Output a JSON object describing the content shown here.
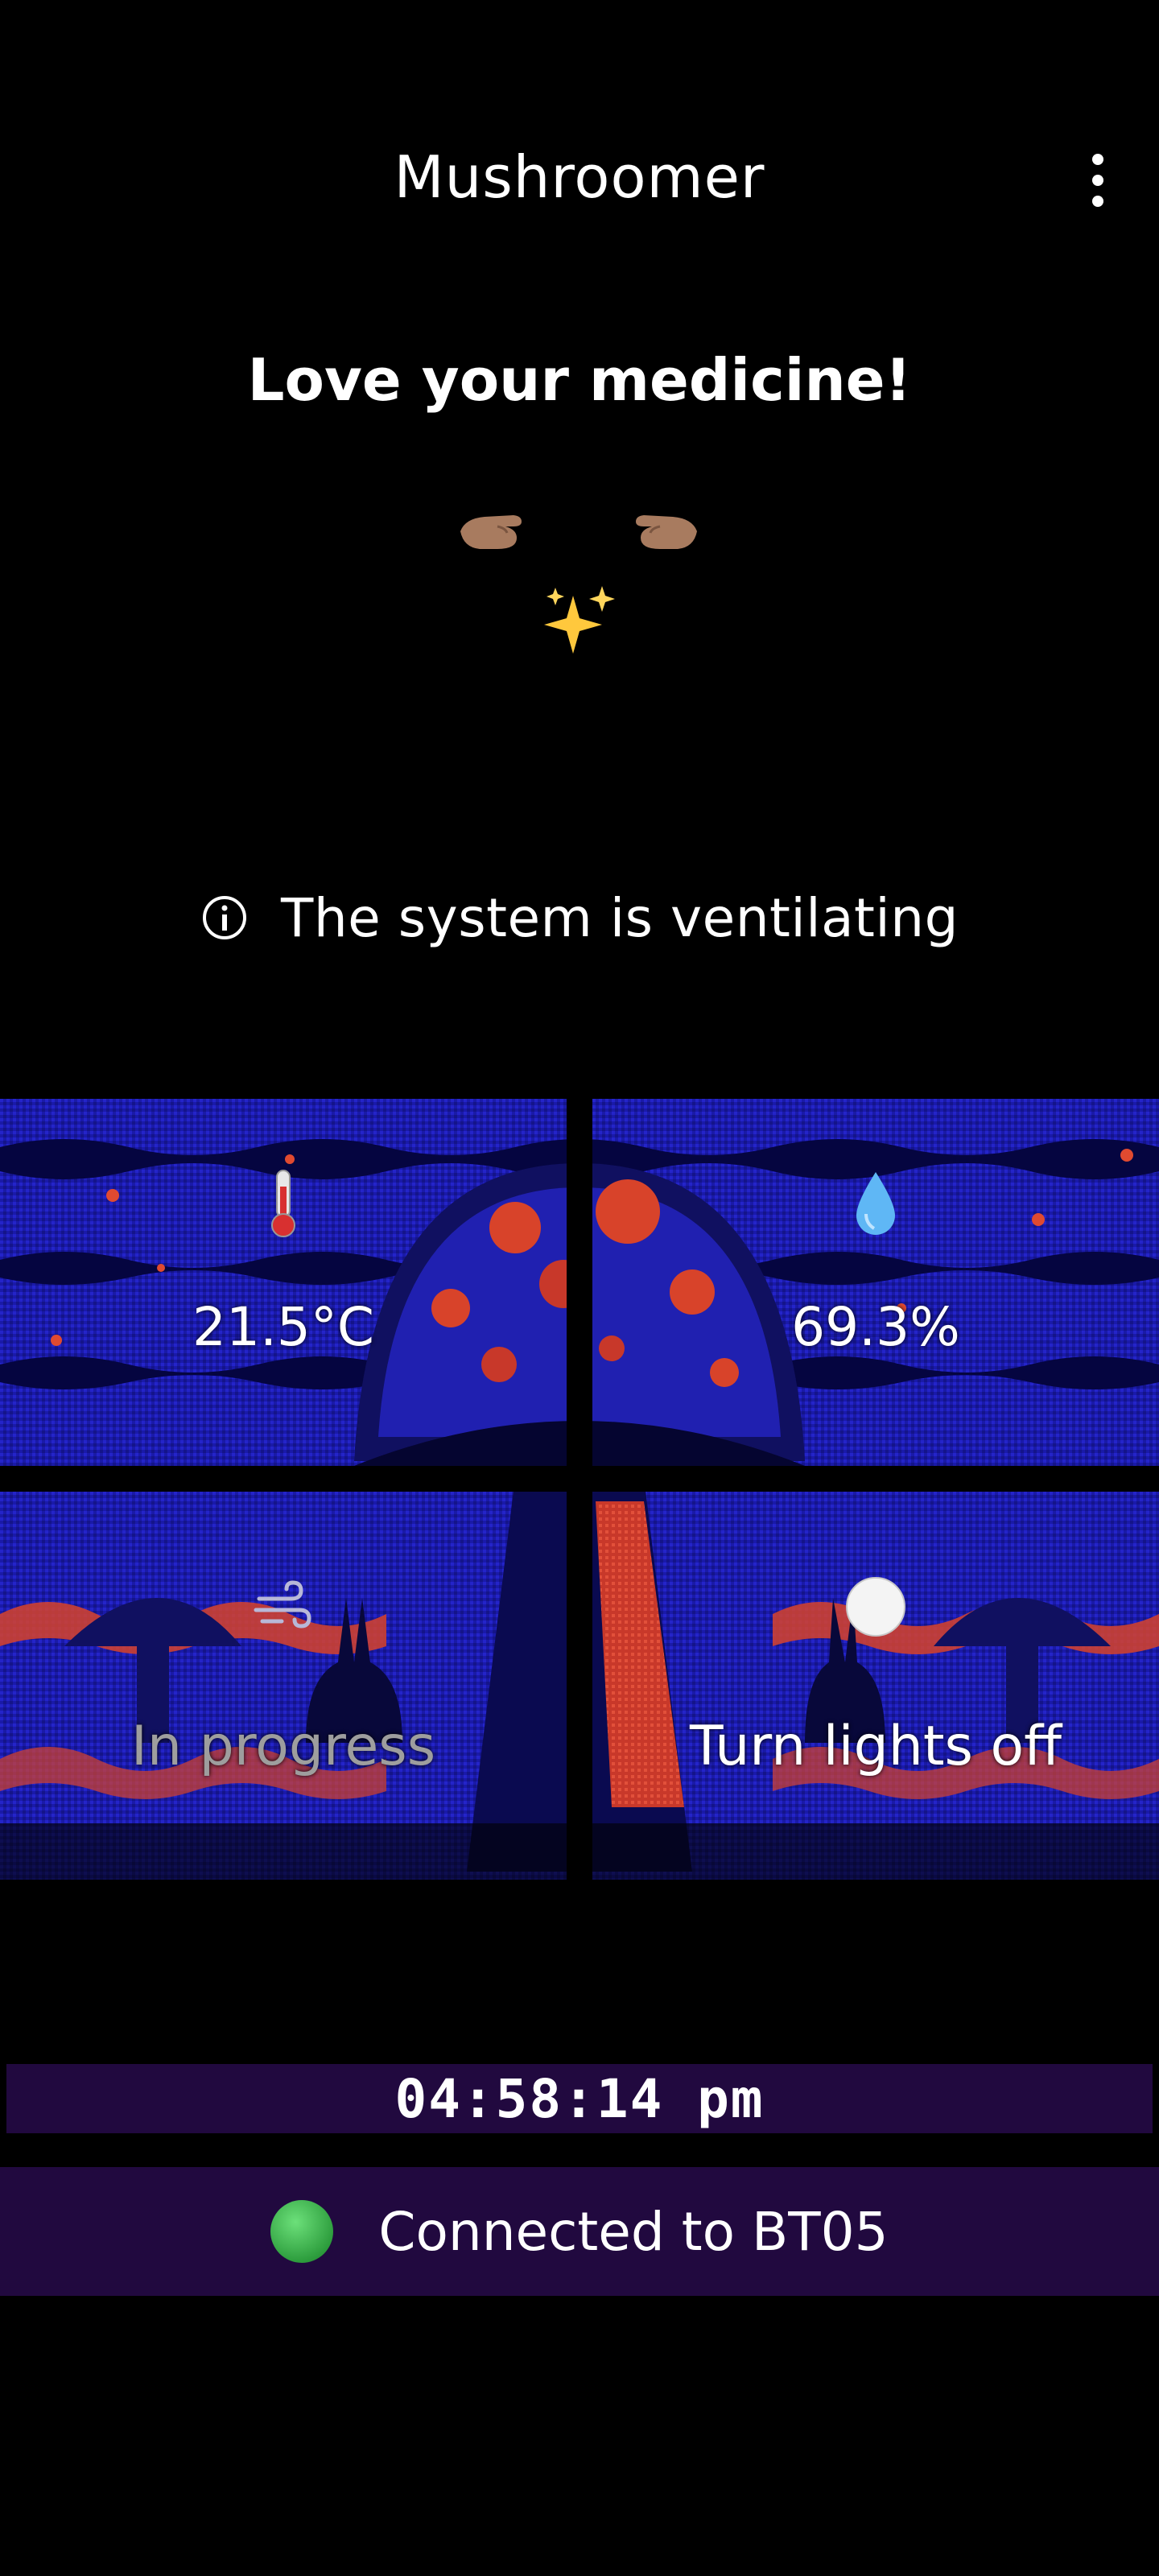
{
  "app": {
    "title": "Mushroomer",
    "menu_icon": "more-vert-icon"
  },
  "tagline": "Love your medicine!",
  "decor": {
    "icons": [
      "left-hand-icon",
      "right-hand-icon",
      "sparkles-icon"
    ]
  },
  "status": {
    "icon": "info-icon",
    "text": "The system is ventilating"
  },
  "tiles": {
    "temperature": {
      "icon": "thermometer-icon",
      "value": "21.5°C"
    },
    "humidity": {
      "icon": "droplet-icon",
      "value": "69.3%"
    },
    "ventilation": {
      "icon": "wind-icon",
      "value": "In progress"
    },
    "lights": {
      "icon": "white-circle-icon",
      "value": "Turn lights off"
    }
  },
  "clock": {
    "time": "04:58:14 pm"
  },
  "connection": {
    "icon": "green-circle-icon",
    "text": "Connected to BT05"
  },
  "colors": {
    "background": "#000000",
    "bar_background": "#21093f",
    "panel_blue": "#1f1fb8",
    "panel_red": "#d8432a"
  }
}
